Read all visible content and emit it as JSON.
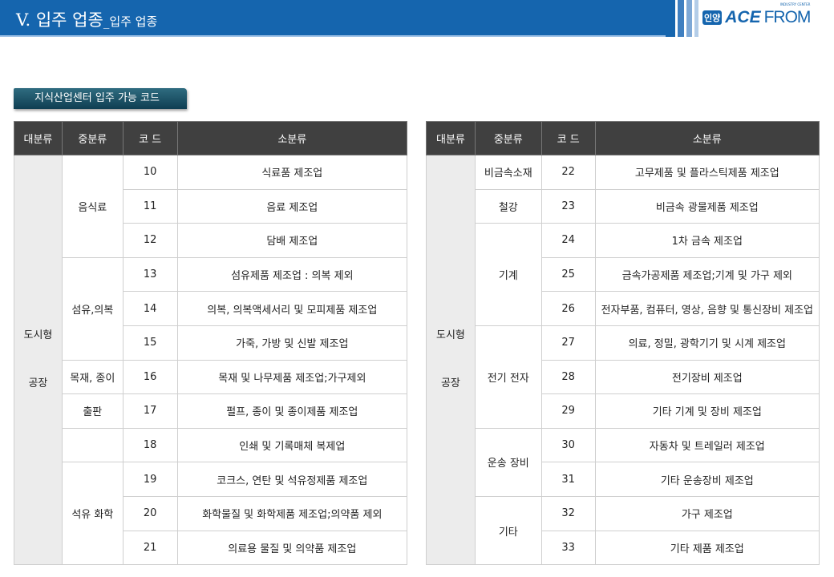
{
  "header": {
    "title": "V. 입주 업종",
    "title_sub": "_입주 업종",
    "logo_badge": "인양",
    "logo_ace": "ACE",
    "logo_from": "FROM",
    "logo_tagline": "INDUSTRY CENTER",
    "color": "#1565ae"
  },
  "subtitle": "지식산업센터 입주 가능 코드",
  "columns": [
    "대분류",
    "중분류",
    "코 드",
    "소분류"
  ],
  "left": {
    "major": [
      "도시형",
      "공장"
    ],
    "groups": [
      {
        "name": "음식료",
        "rows": [
          [
            "10",
            "식료품 제조업"
          ],
          [
            "11",
            "음료 제조업"
          ],
          [
            "12",
            "담배 제조업"
          ]
        ]
      },
      {
        "name": "섬유,의복",
        "rows": [
          [
            "13",
            "섬유제품 제조업 : 의복 제외"
          ],
          [
            "14",
            "의복, 의복액세서리 및 모피제품 제조업"
          ],
          [
            "15",
            "가죽, 가방 및 신발 제조업"
          ]
        ]
      },
      {
        "name": "목재, 종이",
        "rows": [
          [
            "16",
            "목재 및 나무제품 제조업;가구제외"
          ]
        ]
      },
      {
        "name": "출판",
        "rows": [
          [
            "17",
            "펄프, 종이 및 종이제품 제조업"
          ]
        ]
      },
      {
        "name": "",
        "rows": [
          [
            "18",
            "인쇄 및 기록매체 복제업"
          ]
        ]
      },
      {
        "name": "석유 화학",
        "rows": [
          [
            "19",
            "코크스, 연탄 및 석유정제품 제조업"
          ],
          [
            "20",
            "화학물질 및 화학제품 제조업;의약품 제외"
          ],
          [
            "21",
            "의료용 물질 및 의약품 제조업"
          ]
        ]
      }
    ]
  },
  "right": {
    "major": [
      "도시형",
      "공장"
    ],
    "groups": [
      {
        "name": "비금속소재",
        "rows": [
          [
            "22",
            "고무제품 및 플라스틱제품 제조업"
          ]
        ]
      },
      {
        "name": "철강",
        "rows": [
          [
            "23",
            "비금속 광물제품 제조업"
          ]
        ]
      },
      {
        "name": "기계",
        "rows": [
          [
            "24",
            "1차 금속 제조업"
          ],
          [
            "25",
            "금속가공제품 제조업;기계 및 가구 제외"
          ],
          [
            "26",
            "전자부품, 컴퓨터, 영상, 음향 및 통신장비 제조업"
          ]
        ]
      },
      {
        "name": "전기 전자",
        "rows": [
          [
            "27",
            "의료, 정밀, 광학기기 및 시계 제조업"
          ],
          [
            "28",
            "전기장비 제조업"
          ],
          [
            "29",
            "기타 기계 및 장비 제조업"
          ]
        ]
      },
      {
        "name": "운송 장비",
        "rows": [
          [
            "30",
            "자동차 및 트레일러 제조업"
          ],
          [
            "31",
            "기타 운송장비 제조업"
          ]
        ]
      },
      {
        "name": "기타",
        "rows": [
          [
            "32",
            "가구 제조업"
          ],
          [
            "33",
            "기타 제품 제조업"
          ]
        ]
      }
    ]
  }
}
